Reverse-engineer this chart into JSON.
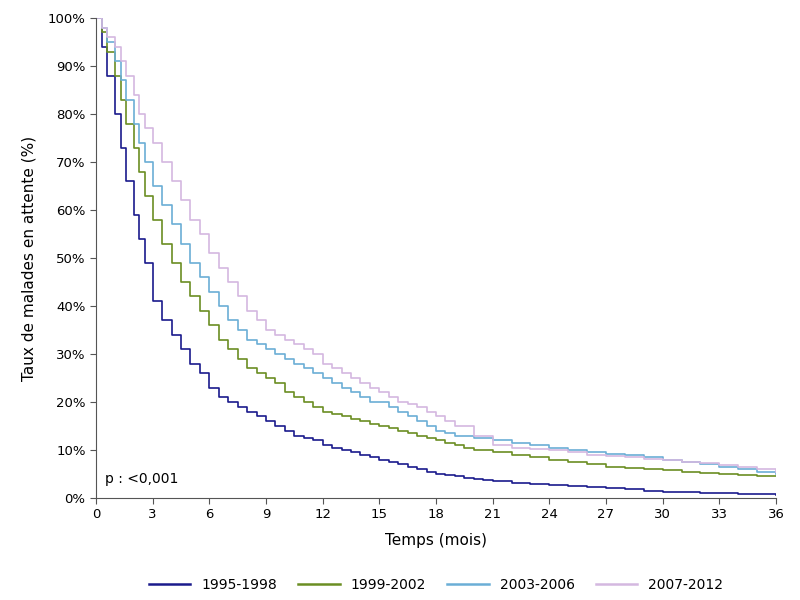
{
  "title": "",
  "xlabel": "Temps (mois)",
  "ylabel": "Taux de malades en attente (%)",
  "xlim": [
    0,
    36
  ],
  "ylim": [
    0,
    100
  ],
  "xticks": [
    0,
    3,
    6,
    9,
    12,
    15,
    18,
    21,
    24,
    27,
    30,
    33,
    36
  ],
  "yticks": [
    0,
    10,
    20,
    30,
    40,
    50,
    60,
    70,
    80,
    90,
    100
  ],
  "annotation": "p : <0,001",
  "series": [
    {
      "label": "1995-1998",
      "color": "#1a1a8c",
      "x": [
        0,
        0.3,
        0.6,
        1.0,
        1.3,
        1.6,
        2.0,
        2.3,
        2.6,
        3.0,
        3.5,
        4.0,
        4.5,
        5.0,
        5.5,
        6.0,
        6.5,
        7.0,
        7.5,
        8.0,
        8.5,
        9.0,
        9.5,
        10.0,
        10.5,
        11.0,
        11.5,
        12.0,
        12.5,
        13.0,
        13.5,
        14.0,
        14.5,
        15.0,
        15.5,
        16.0,
        16.5,
        17.0,
        17.5,
        18.0,
        18.5,
        19.0,
        19.5,
        20.0,
        20.5,
        21.0,
        22.0,
        23.0,
        24.0,
        25.0,
        26.0,
        27.0,
        28.0,
        29.0,
        30.0,
        31.0,
        32.0,
        33.0,
        34.0,
        35.0,
        36.0
      ],
      "y": [
        100,
        94,
        88,
        80,
        73,
        66,
        59,
        54,
        49,
        41,
        37,
        34,
        31,
        28,
        26,
        23,
        21,
        20,
        19,
        18,
        17,
        16,
        15,
        14,
        13,
        12.5,
        12,
        11,
        10.5,
        10,
        9.5,
        9,
        8.5,
        8,
        7.5,
        7,
        6.5,
        6,
        5.5,
        5,
        4.8,
        4.5,
        4.2,
        4.0,
        3.8,
        3.5,
        3.2,
        3.0,
        2.7,
        2.5,
        2.2,
        2.0,
        1.8,
        1.5,
        1.3,
        1.2,
        1.1,
        1.0,
        0.9,
        0.8,
        0.7
      ]
    },
    {
      "label": "1999-2002",
      "color": "#6b8e23",
      "x": [
        0,
        0.3,
        0.6,
        1.0,
        1.3,
        1.6,
        2.0,
        2.3,
        2.6,
        3.0,
        3.5,
        4.0,
        4.5,
        5.0,
        5.5,
        6.0,
        6.5,
        7.0,
        7.5,
        8.0,
        8.5,
        9.0,
        9.5,
        10.0,
        10.5,
        11.0,
        11.5,
        12.0,
        12.5,
        13.0,
        13.5,
        14.0,
        14.5,
        15.0,
        15.5,
        16.0,
        16.5,
        17.0,
        17.5,
        18.0,
        18.5,
        19.0,
        19.5,
        20.0,
        21.0,
        22.0,
        23.0,
        24.0,
        25.0,
        26.0,
        27.0,
        28.0,
        29.0,
        30.0,
        31.0,
        32.0,
        33.0,
        34.0,
        35.0,
        36.0
      ],
      "y": [
        100,
        97,
        93,
        88,
        83,
        78,
        73,
        68,
        63,
        58,
        53,
        49,
        45,
        42,
        39,
        36,
        33,
        31,
        29,
        27,
        26,
        25,
        24,
        22,
        21,
        20,
        19,
        18,
        17.5,
        17,
        16.5,
        16,
        15.5,
        15,
        14.5,
        14,
        13.5,
        13,
        12.5,
        12,
        11.5,
        11,
        10.5,
        10,
        9.5,
        9.0,
        8.5,
        8.0,
        7.5,
        7.0,
        6.5,
        6.2,
        6.0,
        5.8,
        5.5,
        5.3,
        5.0,
        4.8,
        4.6,
        4.5
      ]
    },
    {
      "label": "2003-2006",
      "color": "#6baed6",
      "x": [
        0,
        0.3,
        0.6,
        1.0,
        1.3,
        1.6,
        2.0,
        2.3,
        2.6,
        3.0,
        3.5,
        4.0,
        4.5,
        5.0,
        5.5,
        6.0,
        6.5,
        7.0,
        7.5,
        8.0,
        8.5,
        9.0,
        9.5,
        10.0,
        10.5,
        11.0,
        11.5,
        12.0,
        12.5,
        13.0,
        13.5,
        14.0,
        14.5,
        15.0,
        15.5,
        16.0,
        16.5,
        17.0,
        17.5,
        18.0,
        18.5,
        19.0,
        20.0,
        21.0,
        22.0,
        23.0,
        24.0,
        25.0,
        26.0,
        27.0,
        28.0,
        29.0,
        30.0,
        31.0,
        32.0,
        33.0,
        34.0,
        35.0,
        36.0
      ],
      "y": [
        100,
        98,
        95,
        91,
        87,
        83,
        78,
        74,
        70,
        65,
        61,
        57,
        53,
        49,
        46,
        43,
        40,
        37,
        35,
        33,
        32,
        31,
        30,
        29,
        28,
        27,
        26,
        25,
        24,
        23,
        22,
        21,
        20,
        20,
        19,
        18,
        17,
        16,
        15,
        14,
        13.5,
        13,
        12.5,
        12,
        11.5,
        11,
        10.5,
        10,
        9.5,
        9.2,
        9.0,
        8.5,
        8.0,
        7.5,
        7.0,
        6.5,
        6.0,
        5.5,
        5.0
      ]
    },
    {
      "label": "2007-2012",
      "color": "#d4b8e0",
      "x": [
        0,
        0.3,
        0.6,
        1.0,
        1.3,
        1.6,
        2.0,
        2.3,
        2.6,
        3.0,
        3.5,
        4.0,
        4.5,
        5.0,
        5.5,
        6.0,
        6.5,
        7.0,
        7.5,
        8.0,
        8.5,
        9.0,
        9.5,
        10.0,
        10.5,
        11.0,
        11.5,
        12.0,
        12.5,
        13.0,
        13.5,
        14.0,
        14.5,
        15.0,
        15.5,
        16.0,
        16.5,
        17.0,
        17.5,
        18.0,
        18.5,
        19.0,
        20.0,
        21.0,
        22.0,
        23.0,
        24.0,
        25.0,
        26.0,
        27.0,
        28.0,
        29.0,
        30.0,
        31.0,
        32.0,
        33.0,
        34.0,
        35.0,
        36.0
      ],
      "y": [
        100,
        98,
        96,
        94,
        91,
        88,
        84,
        80,
        77,
        74,
        70,
        66,
        62,
        58,
        55,
        51,
        48,
        45,
        42,
        39,
        37,
        35,
        34,
        33,
        32,
        31,
        30,
        28,
        27,
        26,
        25,
        24,
        23,
        22,
        21,
        20,
        19.5,
        19,
        18,
        17,
        16,
        15,
        13,
        11,
        10.5,
        10.2,
        10.0,
        9.5,
        9.0,
        8.8,
        8.5,
        8.2,
        8.0,
        7.5,
        7.2,
        6.8,
        6.5,
        6.0,
        5.5
      ]
    }
  ],
  "background_color": "#ffffff",
  "linewidth": 1.2
}
